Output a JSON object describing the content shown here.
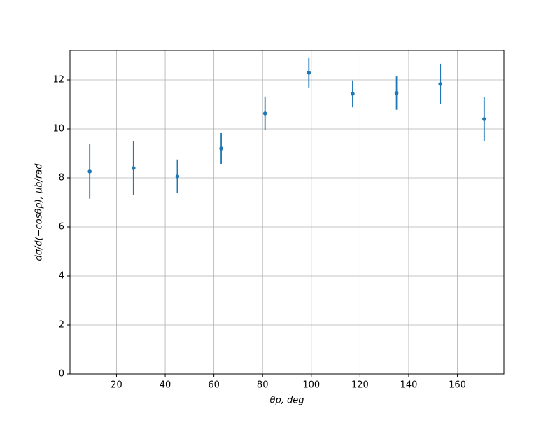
{
  "chart_data": {
    "type": "errorbar",
    "xlabel": "θp, deg",
    "ylabel": "dσ/d(−cosθp), μb/rad",
    "x": [
      9,
      27,
      45,
      63,
      81,
      99,
      117,
      135,
      153,
      171
    ],
    "series": [
      {
        "color": "#1f77b4",
        "values": [
          8.26,
          8.4,
          8.06,
          9.2,
          10.63,
          12.29,
          11.43,
          11.46,
          11.83,
          10.4
        ],
        "errors": [
          1.11,
          1.09,
          0.69,
          0.63,
          0.69,
          0.6,
          0.55,
          0.68,
          0.83,
          0.91
        ]
      }
    ],
    "xlim": [
      0.9,
      179.1
    ],
    "xticks": [
      20,
      40,
      60,
      80,
      100,
      120,
      140,
      160
    ],
    "ylim": [
      0,
      13.2
    ],
    "yticks": [
      0,
      2,
      4,
      6,
      8,
      10,
      12
    ],
    "grid": true
  }
}
